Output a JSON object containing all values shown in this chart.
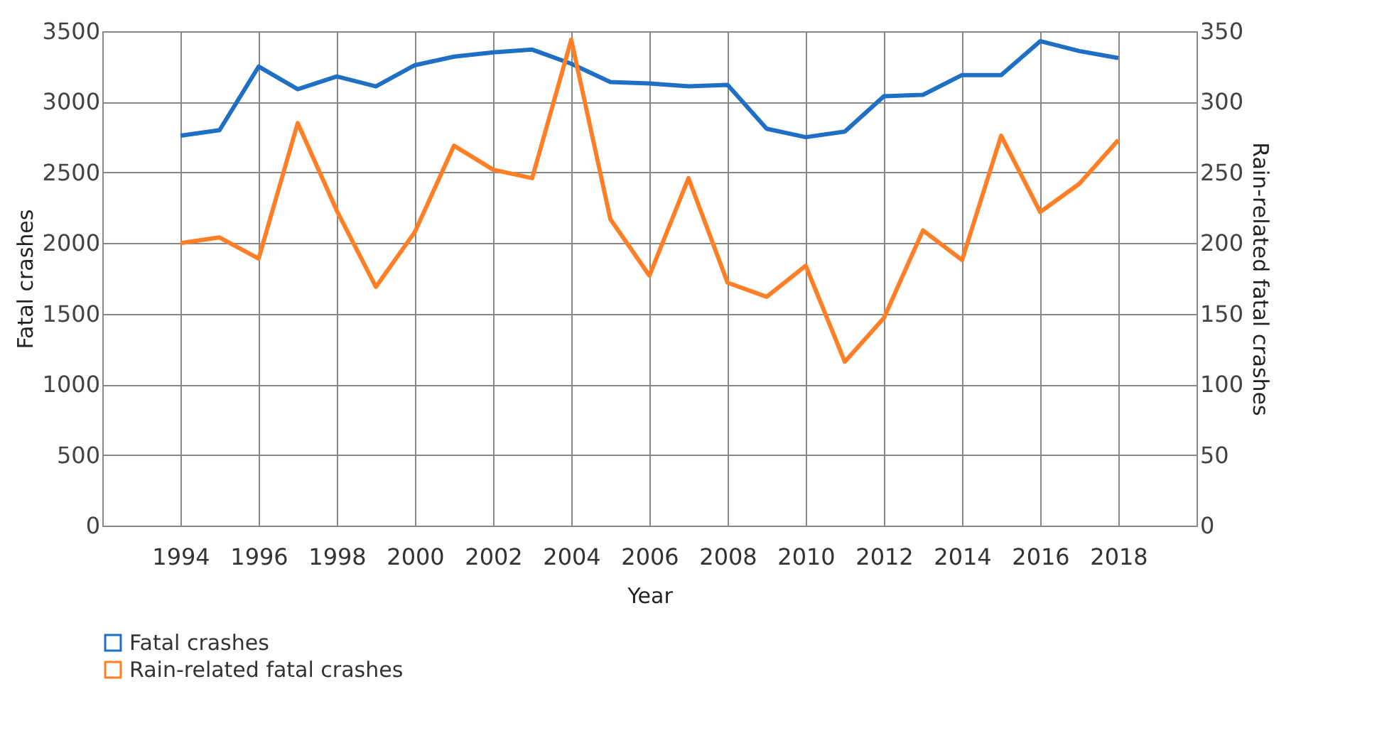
{
  "chart_data": {
    "type": "line",
    "xlabel": "Year",
    "ylabel": "Fatal crashes",
    "y2label": "Rain-related fatal crashes",
    "x": [
      1994,
      1995,
      1996,
      1997,
      1998,
      1999,
      2000,
      2001,
      2002,
      2003,
      2004,
      2005,
      2006,
      2007,
      2008,
      2009,
      2010,
      2011,
      2012,
      2013,
      2014,
      2015,
      2016,
      2017,
      2018
    ],
    "series": [
      {
        "name": "Fatal crashes",
        "color": "#1f6fc5",
        "values": [
          2760,
          2800,
          3250,
          3090,
          3180,
          3110,
          3260,
          3320,
          3350,
          3370,
          3270,
          3140,
          3130,
          3110,
          3120,
          2810,
          2750,
          2790,
          3040,
          3050,
          3190,
          3190,
          3430,
          3360,
          3310
        ]
      },
      {
        "name": "Rain-related fatal crashes",
        "color": "#ff7f27",
        "axis": "y2",
        "values": [
          200,
          204,
          189,
          285,
          223,
          169,
          208,
          269,
          252,
          246,
          344,
          217,
          177,
          246,
          172,
          162,
          184,
          116,
          147,
          209,
          188,
          276,
          222,
          242,
          273
        ]
      }
    ],
    "xlim": [
      1992,
      2020
    ],
    "xticks": [
      1994,
      1996,
      1998,
      2000,
      2002,
      2004,
      2006,
      2008,
      2010,
      2012,
      2014,
      2016,
      2018
    ],
    "ylim": [
      0,
      3500
    ],
    "yticks": [
      0,
      500,
      1000,
      1500,
      2000,
      2500,
      3000,
      3500
    ],
    "y2lim": [
      0,
      350
    ],
    "y2ticks": [
      0,
      50,
      100,
      150,
      200,
      250,
      300,
      350
    ],
    "grid": true,
    "legend": "bottom",
    "marker": "none",
    "line_style": "solid"
  }
}
